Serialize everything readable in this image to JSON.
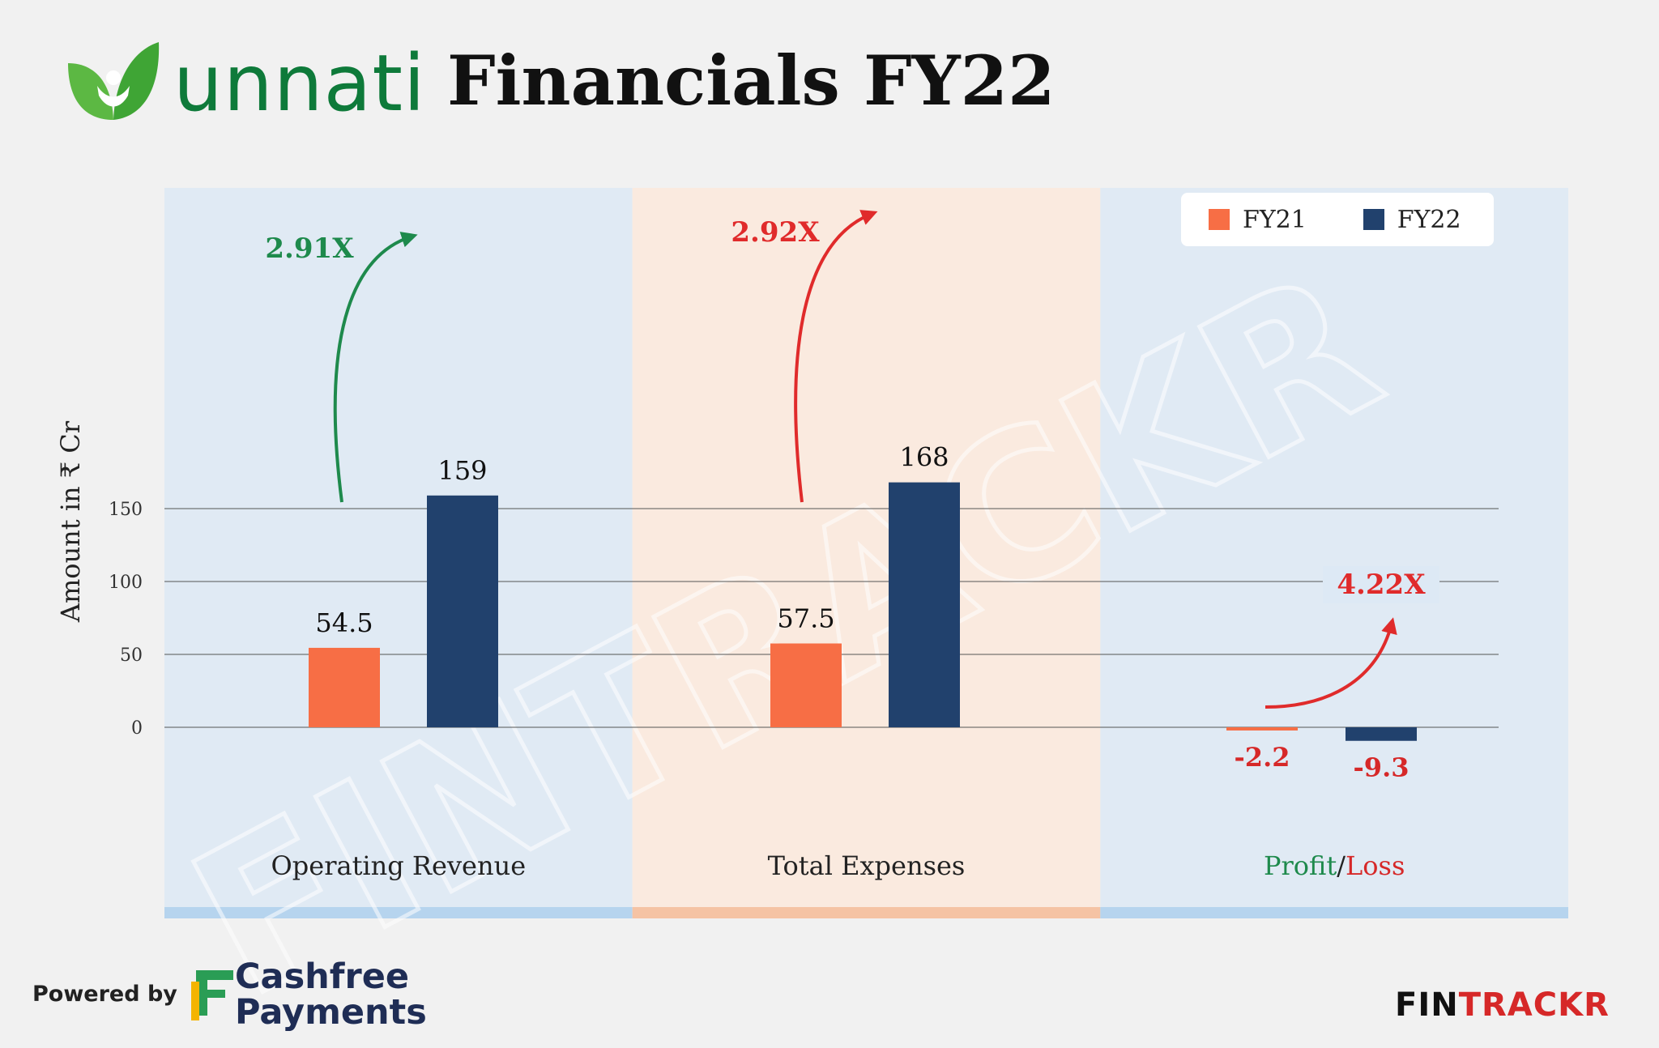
{
  "header": {
    "brand_name": "unnati",
    "title": "Financials FY22"
  },
  "footer": {
    "powered_by": "Powered by",
    "sponsor_line1": "Cashfree",
    "sponsor_line2": "Payments",
    "publisher_part1": "FIN",
    "publisher_part2": "TRACKR"
  },
  "watermark": "FINTRACKR",
  "colors": {
    "fy21": "#f76e45",
    "fy22": "#21416d",
    "growth_green": "#1e8a4c",
    "growth_red": "#e02b2b",
    "loss_red": "#d62828",
    "panel_blue": "#dde9f5",
    "panel_orange": "#fbe9dc"
  },
  "chart_data": {
    "type": "bar",
    "ylabel": "Amount in ₹ Cr",
    "ylim": [
      -30,
      190
    ],
    "yticks": [
      0,
      50,
      100,
      150
    ],
    "grid": true,
    "legend_position": "top-right",
    "categories": [
      "Operating Revenue",
      "Total Expenses",
      "Profit/Loss"
    ],
    "category_parts": [
      [
        {
          "text": "Operating Revenue",
          "color": "#222222"
        }
      ],
      [
        {
          "text": "Total Expenses",
          "color": "#222222"
        }
      ],
      [
        {
          "text": "Profit",
          "color": "#1e8a4c"
        },
        {
          "text": "/",
          "color": "#222222"
        },
        {
          "text": "Loss",
          "color": "#d62828"
        }
      ]
    ],
    "series": [
      {
        "name": "FY21",
        "color": "#f76e45",
        "values": [
          54.5,
          57.5,
          -2.2
        ],
        "labels": [
          "54.5",
          "57.5",
          "-2.2"
        ]
      },
      {
        "name": "FY22",
        "color": "#21416d",
        "values": [
          159,
          168,
          -9.3
        ],
        "labels": [
          "159",
          "168",
          "-9.3"
        ]
      }
    ],
    "annotations": [
      {
        "category": 0,
        "text": "2.91X",
        "color": "#1e8a4c"
      },
      {
        "category": 1,
        "text": "2.92X",
        "color": "#e02b2b"
      },
      {
        "category": 2,
        "text": "4.22X",
        "color": "#e02b2b"
      }
    ]
  }
}
